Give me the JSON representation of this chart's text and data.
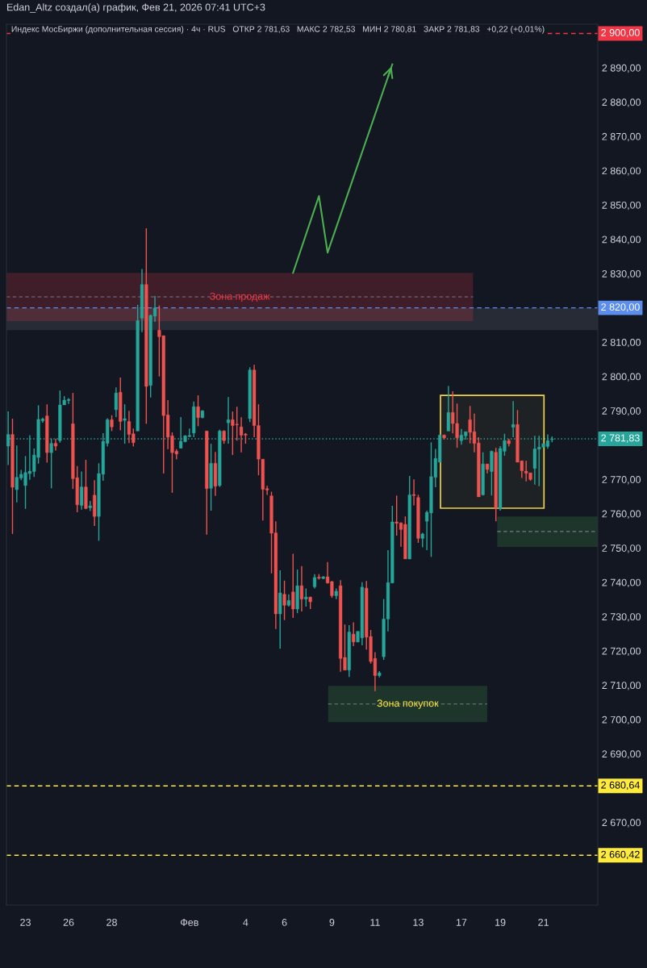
{
  "chart_data": {
    "type": "candlestick",
    "title": "Edan_Altz создал(а) график, Фев 21, 2026 07:41 UTC+3",
    "subtitle": "Индекс МосБиржи (дополнительная сессия) · 4ч · RUS   ОТКР 2 781,63   МАКС 2 782,53   МИН 2 780,81   ЗАКР 2 781,83   +0,22 (+0,01%)",
    "categories": [
      null,
      null,
      null,
      null,
      "23",
      null,
      null,
      null,
      null,
      null,
      null,
      null,
      null,
      null,
      "26",
      null,
      null,
      null,
      null,
      null,
      null,
      null,
      null,
      null,
      "28",
      null,
      null,
      null,
      null,
      null,
      null,
      null,
      null,
      null,
      null,
      null,
      null,
      null,
      null,
      null,
      null,
      null,
      "Фев",
      null,
      null,
      null,
      null,
      null,
      null,
      null,
      null,
      null,
      null,
      null,
      null,
      "4",
      null,
      null,
      null,
      null,
      null,
      null,
      null,
      null,
      "6",
      null,
      null,
      null,
      null,
      null,
      null,
      null,
      null,
      null,
      null,
      "9",
      null,
      null,
      null,
      null,
      null,
      null,
      null,
      null,
      null,
      "11",
      null,
      null,
      null,
      null,
      null,
      null,
      null,
      null,
      null,
      "13",
      null,
      null,
      null,
      null,
      null,
      null,
      null,
      null,
      null,
      "17",
      null,
      null,
      null,
      null,
      null,
      null,
      null,
      null,
      "19",
      null,
      null,
      null,
      null,
      null,
      null,
      null,
      null,
      null,
      "21",
      null,
      null
    ],
    "ohlc": [
      [
        2779.7,
        2789.8,
        2774.2,
        2783.1
      ],
      [
        2783.1,
        2787.7,
        2754.1,
        2767.7
      ],
      [
        2767.0,
        2779.9,
        2763.3,
        2770.6
      ],
      [
        2770.4,
        2772.8,
        2769.8,
        2771.5
      ],
      [
        2768.2,
        2776.8,
        2761.4,
        2772.0
      ],
      [
        2771.7,
        2782.9,
        2769.9,
        2772.4
      ],
      [
        2772.3,
        2779.0,
        2770.7,
        2777.1
      ],
      [
        2776.4,
        2791.6,
        2774.6,
        2787.5
      ],
      [
        2787.1,
        2788.0,
        2786.5,
        2787.6
      ],
      [
        2788.5,
        2791.9,
        2774.9,
        2777.8
      ],
      [
        2777.8,
        2781.9,
        2767.4,
        2780.5
      ],
      [
        2780.5,
        2781.9,
        2778.4,
        2779.7
      ],
      [
        2781.3,
        2795.9,
        2780.7,
        2791.7
      ],
      [
        2791.7,
        2794.3,
        2791.7,
        2793.1
      ],
      [
        2793.0,
        2793.7,
        2792.0,
        2793.3
      ],
      [
        2786.2,
        2795.2,
        2767.2,
        2770.2
      ],
      [
        2770.5,
        2773.9,
        2760.4,
        2762.6
      ],
      [
        2762.4,
        2772.3,
        2761.2,
        2767.8
      ],
      [
        2767.8,
        2775.7,
        2761.3,
        2761.5
      ],
      [
        2761.7,
        2763.7,
        2760.8,
        2762.3
      ],
      [
        2765.4,
        2769.8,
        2756.4,
        2759.2
      ],
      [
        2759.2,
        2774.7,
        2752.1,
        2771.7
      ],
      [
        2771.5,
        2783.5,
        2769.6,
        2781.1
      ],
      [
        2780.5,
        2787.8,
        2779.6,
        2787.4
      ],
      [
        2787.4,
        2788.7,
        2784.1,
        2785.3
      ],
      [
        2790.3,
        2796.8,
        2788.2,
        2795.2
      ],
      [
        2795.4,
        2799.7,
        2784.3,
        2786.9
      ],
      [
        2787.2,
        2791.9,
        2780.4,
        2787.7
      ],
      [
        2786.9,
        2790.0,
        2780.6,
        2783.1
      ],
      [
        2783.3,
        2784.8,
        2779.6,
        2780.7
      ],
      [
        2784.1,
        2820.9,
        2784.1,
        2816.3
      ],
      [
        2817.0,
        2831.3,
        2812.9,
        2826.8
      ],
      [
        2826.8,
        2843.2,
        2786.2,
        2797.1
      ],
      [
        2797.4,
        2818.1,
        2793.9,
        2817.8
      ],
      [
        2817.6,
        2823.5,
        2815.9,
        2820.0
      ],
      [
        2813.5,
        2820.7,
        2800.0,
        2811.6
      ],
      [
        2811.9,
        2811.9,
        2771.7,
        2788.6
      ],
      [
        2788.8,
        2793.1,
        2778.8,
        2782.3
      ],
      [
        2782.7,
        2783.7,
        2766.1,
        2777.8
      ],
      [
        2778.2,
        2778.8,
        2775.8,
        2777.4
      ],
      [
        2779.1,
        2788.2,
        2779.0,
        2781.1
      ],
      [
        2781.0,
        2782.9,
        2780.8,
        2782.7
      ],
      [
        2782.5,
        2784.8,
        2782.3,
        2782.8
      ],
      [
        2783.5,
        2792.7,
        2782.3,
        2791.2
      ],
      [
        2791.2,
        2794.5,
        2785.5,
        2788.0
      ],
      [
        2788.0,
        2790.2,
        2787.8,
        2790.0
      ],
      [
        2784.1,
        2784.1,
        2753.9,
        2767.3
      ],
      [
        2767.4,
        2780.4,
        2760.9,
        2774.7
      ],
      [
        2774.7,
        2778.0,
        2765.2,
        2768.0
      ],
      [
        2768.2,
        2784.5,
        2767.8,
        2784.1
      ],
      [
        2784.1,
        2784.3,
        2780.4,
        2781.3
      ],
      [
        2786.5,
        2794.0,
        2780.4,
        2787.4
      ],
      [
        2787.4,
        2789.8,
        2777.1,
        2785.7
      ],
      [
        2786.1,
        2791.2,
        2781.3,
        2785.9
      ],
      [
        2785.3,
        2788.1,
        2777.9,
        2782.9
      ],
      [
        2783.2,
        2783.5,
        2780.4,
        2782.9
      ],
      [
        2787.7,
        2802.7,
        2786.7,
        2801.9
      ],
      [
        2801.9,
        2803.4,
        2782.3,
        2785.7
      ],
      [
        2785.7,
        2791.9,
        2771.2,
        2775.9
      ],
      [
        2775.9,
        2775.9,
        2758.0,
        2767.1
      ],
      [
        2767.3,
        2768.1,
        2765.5,
        2766.9
      ],
      [
        2765.2,
        2766.4,
        2742.6,
        2754.3
      ],
      [
        2754.4,
        2757.8,
        2726.4,
        2730.8
      ],
      [
        2730.8,
        2743.5,
        2720.6,
        2736.9
      ],
      [
        2736.5,
        2740.5,
        2729.0,
        2733.3
      ],
      [
        2733.3,
        2736.5,
        2732.9,
        2734.7
      ],
      [
        2737.2,
        2748.3,
        2729.6,
        2732.2
      ],
      [
        2732.2,
        2743.7,
        2731.0,
        2739.0
      ],
      [
        2739.0,
        2744.7,
        2731.5,
        2735.1
      ],
      [
        2735.1,
        2738.2,
        2732.9,
        2735.7
      ],
      [
        2735.7,
        2735.8,
        2732.2,
        2734.3
      ],
      [
        2738.7,
        2742.4,
        2738.2,
        2741.4
      ],
      [
        2741.5,
        2742.4,
        2740.8,
        2741.2
      ],
      [
        2741.1,
        2741.8,
        2740.9,
        2741.6
      ],
      [
        2741.6,
        2745.9,
        2739.6,
        2739.8
      ],
      [
        2740.2,
        2740.4,
        2735.5,
        2736.1
      ],
      [
        2736.1,
        2738.2,
        2735.1,
        2737.4
      ],
      [
        2739.0,
        2740.6,
        2713.9,
        2717.8
      ],
      [
        2718.1,
        2727.7,
        2714.4,
        2714.4
      ],
      [
        2714.4,
        2727.5,
        2712.4,
        2725.5
      ],
      [
        2724.9,
        2728.3,
        2721.4,
        2722.6
      ],
      [
        2722.6,
        2725.7,
        2722.5,
        2725.7
      ],
      [
        2723.8,
        2740.0,
        2721.6,
        2738.6
      ],
      [
        2738.3,
        2740.4,
        2720.4,
        2724.0
      ],
      [
        2724.2,
        2726.1,
        2716.3,
        2716.9
      ],
      [
        2717.8,
        2719.6,
        2708.3,
        2712.8
      ],
      [
        2712.8,
        2714.1,
        2712.3,
        2713.6
      ],
      [
        2718.3,
        2735.1,
        2717.4,
        2729.3
      ],
      [
        2729.3,
        2749.4,
        2725.7,
        2739.9
      ],
      [
        2739.8,
        2762.3,
        2739.8,
        2757.6
      ],
      [
        2757.6,
        2765.3,
        2753.6,
        2757.2
      ],
      [
        2757.3,
        2757.5,
        2750.4,
        2755.4
      ],
      [
        2756.9,
        2759.2,
        2746.8,
        2746.8
      ],
      [
        2746.8,
        2771.0,
        2746.7,
        2765.5
      ],
      [
        2765.6,
        2770.0,
        2762.4,
        2765.3
      ],
      [
        2764.7,
        2765.5,
        2751.5,
        2752.8
      ],
      [
        2752.8,
        2754.4,
        2750.2,
        2754.1
      ],
      [
        2757.8,
        2760.9,
        2749.4,
        2760.4
      ],
      [
        2760.2,
        2780.8,
        2747.4,
        2770.8
      ],
      [
        2770.6,
        2778.9,
        2767.7,
        2776.1
      ],
      [
        2775.0,
        2783.1,
        2775.0,
        2782.9
      ],
      [
        2782.9,
        2783.1,
        2781.6,
        2782.1
      ],
      [
        2784.1,
        2797.2,
        2784.1,
        2789.5
      ],
      [
        2789.5,
        2795.7,
        2783.4,
        2786.3
      ],
      [
        2786.3,
        2792.1,
        2779.2,
        2782.1
      ],
      [
        2781.3,
        2784.7,
        2780.1,
        2782.9
      ],
      [
        2782.7,
        2783.9,
        2781.6,
        2783.9
      ],
      [
        2787.4,
        2791.4,
        2780.5,
        2783.7
      ],
      [
        2783.9,
        2789.2,
        2777.9,
        2780.5
      ],
      [
        2780.6,
        2782.3,
        2764.9,
        2764.9
      ],
      [
        2765.5,
        2777.9,
        2765.3,
        2774.5
      ],
      [
        2774.5,
        2774.5,
        2771.8,
        2772.9
      ],
      [
        2772.3,
        2778.4,
        2765.3,
        2778.2
      ],
      [
        2777.9,
        2779.2,
        2757.8,
        2761.6
      ],
      [
        2761.4,
        2779.7,
        2760.9,
        2779.0
      ],
      [
        2778.2,
        2783.3,
        2776.9,
        2781.3
      ],
      [
        2781.3,
        2781.8,
        2779.6,
        2780.4
      ],
      [
        2785.2,
        2792.8,
        2782.3,
        2786.0
      ],
      [
        2786.0,
        2790.2,
        2775.0,
        2775.0
      ],
      [
        2775.4,
        2775.5,
        2770.4,
        2772.5
      ],
      [
        2772.4,
        2775.4,
        2769.4,
        2771.8
      ],
      [
        2771.9,
        2771.9,
        2769.6,
        2770.0
      ],
      [
        2773.2,
        2782.7,
        2768.5,
        2778.9
      ],
      [
        2778.8,
        2782.7,
        2768.0,
        2779.4
      ],
      [
        2779.4,
        2780.4,
        2779.2,
        2780.4
      ],
      [
        2779.6,
        2783.1,
        2778.96,
        2781.3
      ],
      [
        2781.63,
        2782.53,
        2780.81,
        2781.83
      ]
    ],
    "colors": [
      "#26a69a",
      "#ef5350",
      "#26a69a",
      "#26a69a",
      "#26a69a",
      "#26a69a",
      "#26a69a",
      "#26a69a",
      "#26a69a",
      "#ef5350",
      "#26a69a",
      "#ef5350",
      "#26a69a",
      "#26a69a",
      "#26a69a",
      "#ef5350",
      "#ef5350",
      "#26a69a",
      "#ef5350",
      "#26a69a",
      "#ef5350",
      "#26a69a",
      "#26a69a",
      "#26a69a",
      "#ef5350",
      "#26a69a",
      "#ef5350",
      "#26a69a",
      "#ef5350",
      "#ef5350",
      "#26a69a",
      "#26a69a",
      "#ef5350",
      "#26a69a",
      "#26a69a",
      "#ef5350",
      "#ef5350",
      "#ef5350",
      "#ef5350",
      "#ef5350",
      "#26a69a",
      "#26a69a",
      "#26a69a",
      "#26a69a",
      "#ef5350",
      "#26a69a",
      "#ef5350",
      "#26a69a",
      "#ef5350",
      "#26a69a",
      "#ef5350",
      "#26a69a",
      "#ef5350",
      "#ef5350",
      "#ef5350",
      "#ef5350",
      "#26a69a",
      "#ef5350",
      "#ef5350",
      "#ef5350",
      "#ef5350",
      "#ef5350",
      "#ef5350",
      "#26a69a",
      "#ef5350",
      "#26a69a",
      "#ef5350",
      "#26a69a",
      "#ef5350",
      "#26a69a",
      "#ef5350",
      "#26a69a",
      "#ef5350",
      "#26a69a",
      "#ef5350",
      "#ef5350",
      "#26a69a",
      "#ef5350",
      "#ef5350",
      "#26a69a",
      "#ef5350",
      "#26a69a",
      "#26a69a",
      "#ef5350",
      "#ef5350",
      "#ef5350",
      "#26a69a",
      "#26a69a",
      "#26a69a",
      "#26a69a",
      "#ef5350",
      "#ef5350",
      "#ef5350",
      "#26a69a",
      "#ef5350",
      "#ef5350",
      "#26a69a",
      "#26a69a",
      "#26a69a",
      "#26a69a",
      "#26a69a",
      "#ef5350",
      "#26a69a",
      "#ef5350",
      "#ef5350",
      "#26a69a",
      "#26a69a",
      "#ef5350",
      "#ef5350",
      "#ef5350",
      "#26a69a",
      "#ef5350",
      "#26a69a",
      "#ef5350",
      "#26a69a",
      "#26a69a",
      "#ef5350",
      "#26a69a",
      "#ef5350",
      "#ef5350",
      "#ef5350",
      "#ef5350",
      "#26a69a",
      "#26a69a",
      "#26a69a",
      "#26a69a",
      "#26a69a"
    ],
    "series": [
      {
        "type": "line",
        "color": "#4caf50",
        "values": [
          null,
          null,
          null,
          null,
          null,
          null,
          null,
          null,
          null,
          null,
          null,
          null,
          null,
          null,
          null,
          null,
          null,
          null,
          null,
          null,
          null,
          null,
          null,
          null,
          null,
          null,
          null,
          null,
          null,
          null,
          null,
          null,
          null,
          null,
          null,
          null,
          null,
          null,
          null,
          null,
          null,
          null,
          null,
          null,
          null,
          null,
          null,
          null,
          null,
          null,
          null,
          null,
          null,
          null,
          null,
          null,
          null,
          null,
          null,
          null,
          null,
          null,
          null,
          null,
          null,
          null,
          2830.2,
          null,
          null,
          null,
          null,
          null,
          2852.6,
          null,
          2836.1,
          null,
          null,
          null,
          null,
          null,
          null,
          null,
          null,
          null,
          null,
          null,
          null,
          null,
          null,
          2891.0,
          null,
          null,
          null,
          null,
          null,
          null,
          null,
          null,
          null,
          null,
          null,
          null,
          null,
          null,
          null,
          null,
          null,
          null,
          null,
          null,
          null,
          null,
          null,
          null,
          null,
          null,
          null,
          null,
          null,
          null,
          null,
          null,
          null,
          null,
          null,
          null,
          null
        ]
      }
    ],
    "ylim": [
      2645.9,
      2902.7
    ],
    "yticks": [
      {
        "value": 2670,
        "label": "2 670,00"
      },
      {
        "value": 2690,
        "label": "2 690,00"
      },
      {
        "value": 2700,
        "label": "2 700,00"
      },
      {
        "value": 2710,
        "label": "2 710,00"
      },
      {
        "value": 2720,
        "label": "2 720,00"
      },
      {
        "value": 2730,
        "label": "2 730,00"
      },
      {
        "value": 2740,
        "label": "2 740,00"
      },
      {
        "value": 2750,
        "label": "2 750,00"
      },
      {
        "value": 2760,
        "label": "2 760,00"
      },
      {
        "value": 2770,
        "label": "2 770,00"
      },
      {
        "value": 2790,
        "label": "2 790,00"
      },
      {
        "value": 2800,
        "label": "2 800,00"
      },
      {
        "value": 2810,
        "label": "2 810,00"
      },
      {
        "value": 2830,
        "label": "2 830,00"
      },
      {
        "value": 2840,
        "label": "2 840,00"
      },
      {
        "value": 2850,
        "label": "2 850,00"
      },
      {
        "value": 2860,
        "label": "2 860,00"
      },
      {
        "value": 2870,
        "label": "2 870,00"
      },
      {
        "value": 2880,
        "label": "2 880,00"
      },
      {
        "value": 2890,
        "label": "2 890,00"
      }
    ],
    "grid": false,
    "bands": [
      {
        "axis": "y",
        "from": 2813.5,
        "to": 2819.9,
        "color": "#787b86"
      },
      {
        "axis": "y",
        "from": 2816.1,
        "to": 2830.2,
        "color": "#f23645",
        "label": "Зона продаж"
      },
      {
        "axis": "y",
        "from": 2699.2,
        "to": 2709.8,
        "color": "#4caf50",
        "label": "Зона покупок"
      },
      {
        "axis": "y",
        "from": 2750.3,
        "to": 2759.2,
        "color": "#4caf50"
      },
      {
        "axis": "y",
        "from": 2761.6,
        "to": 2794.5,
        "color": "#f0d54a"
      }
    ],
    "ref_lines": [
      {
        "axis": "y",
        "value": 2900,
        "label": "2 900,00",
        "color": "#f23645",
        "line_style": "dashed"
      },
      {
        "axis": "y",
        "value": 2820,
        "label": "2 820,00",
        "color": "#5b8def",
        "line_style": "dashed"
      },
      {
        "axis": "y",
        "value": 2781.83,
        "label": "2 781,83",
        "color": "#26a69a",
        "line_style": "dotted"
      },
      {
        "axis": "y",
        "value": 2680.64,
        "label": "2 680,64",
        "color": "#ffeb3b",
        "line_style": "dashed"
      },
      {
        "axis": "y",
        "value": 2660.42,
        "label": "2 660,42",
        "color": "#ffeb3b",
        "line_style": "dashed"
      },
      {
        "axis": "y",
        "value": 2823.2,
        "color": "#787b86",
        "line_style": "dashed"
      },
      {
        "axis": "y",
        "value": 2704.5,
        "color": "#787b86",
        "line_style": "dashed"
      },
      {
        "axis": "y",
        "value": 2754.8,
        "color": "#787b86",
        "line_style": "dashed"
      }
    ]
  }
}
